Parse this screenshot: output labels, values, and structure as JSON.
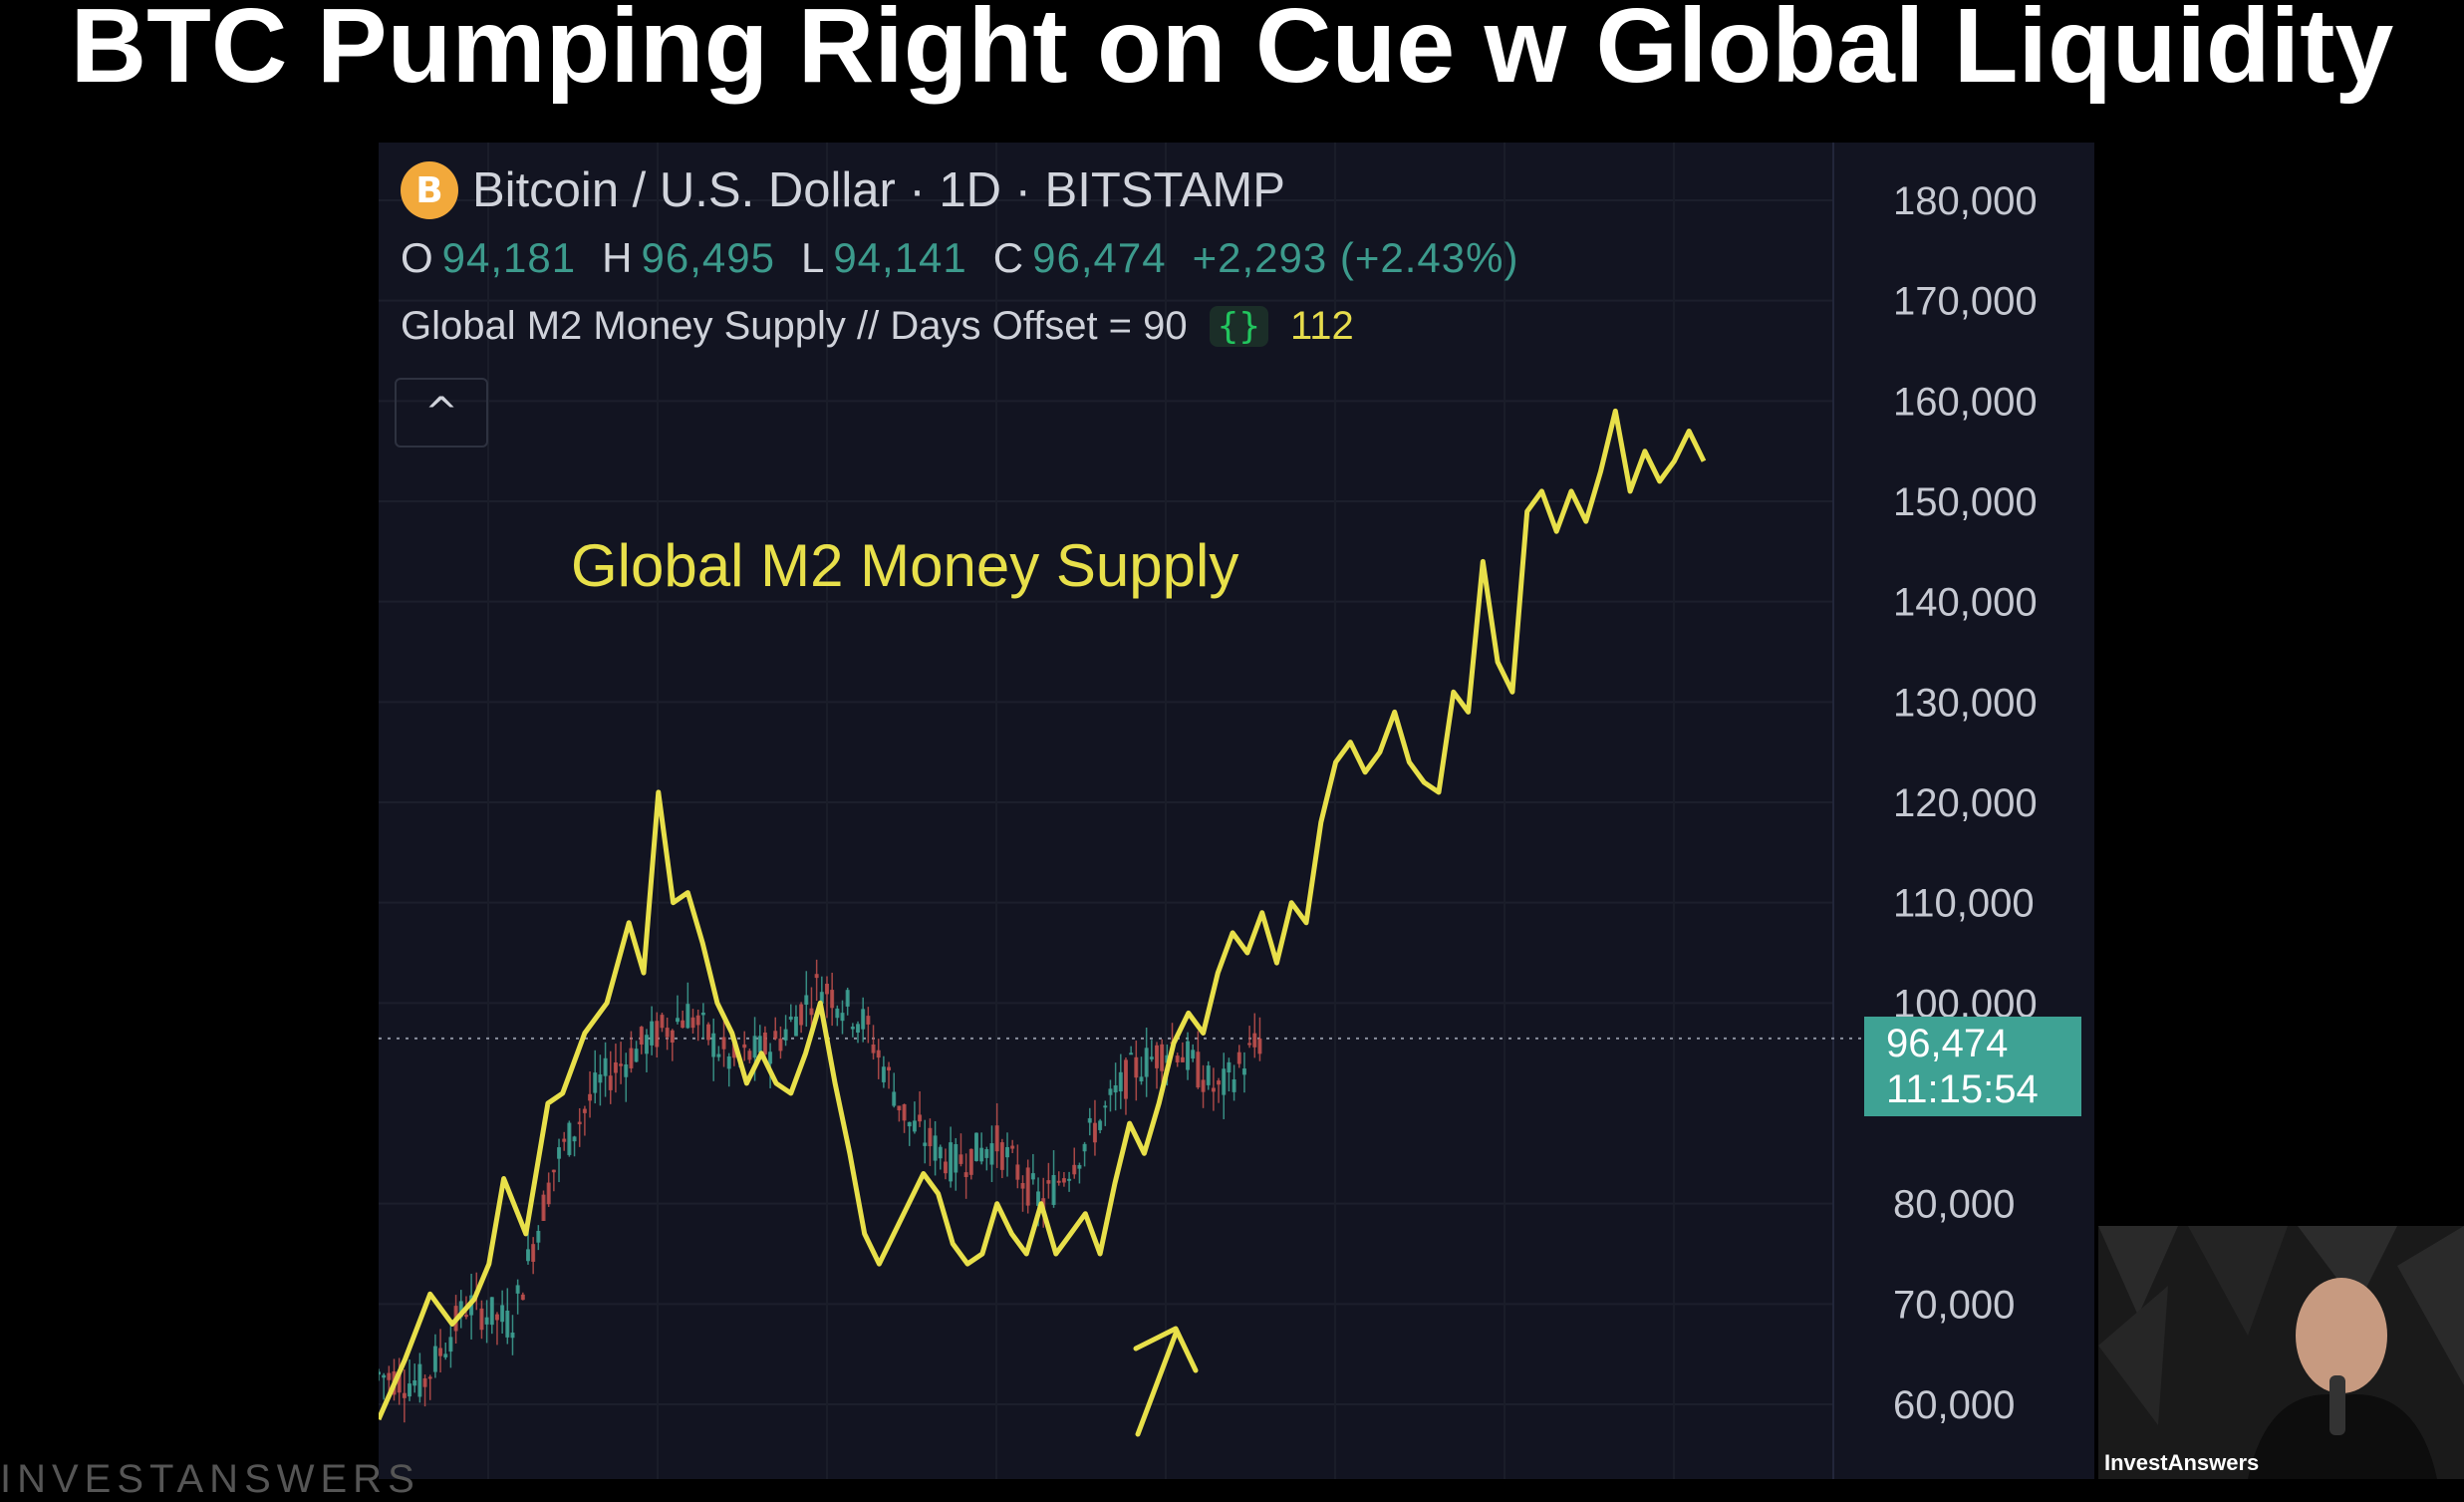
{
  "headline": "BTC Pumping Right on Cue w Global Liquidity",
  "symbol": {
    "icon": "bitcoin-icon",
    "icon_glyph": "B",
    "label": "Bitcoin / U.S. Dollar · 1D · BITSTAMP"
  },
  "ohlc": {
    "o_label": "O",
    "o_value": "94,181",
    "h_label": "H",
    "h_value": "96,495",
    "l_label": "L",
    "l_value": "94,141",
    "c_label": "C",
    "c_value": "96,474",
    "change": "+2,293 (+2.43%)"
  },
  "indicator": {
    "label": "Global M2 Money Supply // Days Offset = 90",
    "icon": "curly-braces-icon",
    "icon_glyph": "{}",
    "value": "112"
  },
  "collapse_icon": "chevron-up-icon",
  "collapse_glyph": "^",
  "annotation": "Global M2 Money Supply",
  "price_tag": {
    "price": "96,474",
    "countdown": "11:15:54"
  },
  "webcam": {
    "label": "InvestAnswers"
  },
  "watermark": "INVESTANSWERS",
  "colors": {
    "background": "#121421",
    "m2_line": "#e8e04a",
    "candle_up": "#3ea294",
    "candle_down": "#c0504d",
    "price_tag": "#3ea294"
  },
  "chart_data": {
    "type": "line",
    "ylim": [
      55000,
      183000
    ],
    "yticks": [
      "180,000",
      "170,000",
      "160,000",
      "150,000",
      "140,000",
      "130,000",
      "120,000",
      "110,000",
      "100,000",
      "80,000",
      "70,000",
      "60,000"
    ],
    "ytick_values": [
      180000,
      170000,
      160000,
      150000,
      140000,
      130000,
      120000,
      110000,
      100000,
      80000,
      70000,
      60000
    ],
    "current_price": 96474,
    "series": [
      {
        "name": "Global M2 Money Supply",
        "x": [
          0,
          1.8,
          3.5,
          5,
          6.5,
          7.5,
          8.5,
          10,
          11.5,
          12.5,
          14,
          15.5,
          17,
          18,
          19,
          20,
          21,
          22,
          23,
          24,
          25,
          26,
          27,
          28,
          29,
          30,
          31,
          32,
          33,
          34,
          35,
          36,
          37,
          38,
          39,
          40,
          41,
          42,
          43,
          44,
          45,
          46,
          47,
          48,
          49,
          50,
          51,
          52,
          53,
          54,
          55,
          56,
          57,
          58,
          59,
          60,
          61,
          62,
          63,
          64,
          65,
          66,
          67,
          68,
          69,
          70,
          71,
          72,
          73,
          74,
          75,
          76,
          77,
          78,
          79,
          80,
          81,
          82,
          83,
          84,
          85,
          86,
          87,
          88,
          89,
          90
        ],
        "values": [
          58500,
          64500,
          71000,
          68000,
          70500,
          74000,
          82500,
          77000,
          90000,
          91000,
          97000,
          100000,
          108000,
          103000,
          121000,
          110000,
          111000,
          106000,
          100000,
          97000,
          92000,
          95000,
          92000,
          91000,
          95000,
          100000,
          92000,
          85000,
          77000,
          74000,
          77000,
          80000,
          83000,
          81000,
          76000,
          74000,
          75000,
          80000,
          77000,
          75000,
          80000,
          75000,
          77000,
          79000,
          75000,
          82000,
          88000,
          85000,
          90000,
          96000,
          99000,
          97000,
          103000,
          107000,
          105000,
          109000,
          104000,
          110000,
          108000,
          118000,
          124000,
          126000,
          123000,
          125000,
          129000,
          124000,
          122000,
          121000,
          131000,
          129000,
          144000,
          134000,
          131000,
          149000,
          151000,
          147000,
          151000,
          148000,
          153000,
          159000,
          151000,
          155000,
          152000,
          154000,
          157000,
          154000
        ]
      },
      {
        "name": "BTC",
        "type": "candlestick",
        "x": [
          0,
          3,
          6,
          9,
          12,
          15,
          18,
          21,
          24,
          27,
          30,
          33,
          36,
          39,
          42,
          45,
          48,
          51,
          54,
          57,
          60
        ],
        "close": [
          63000,
          62000,
          70000,
          68000,
          84000,
          92000,
          96000,
          99000,
          94000,
          96000,
          102000,
          98000,
          88000,
          84000,
          86000,
          80000,
          86000,
          93000,
          96000,
          91000,
          96474
        ]
      }
    ]
  }
}
